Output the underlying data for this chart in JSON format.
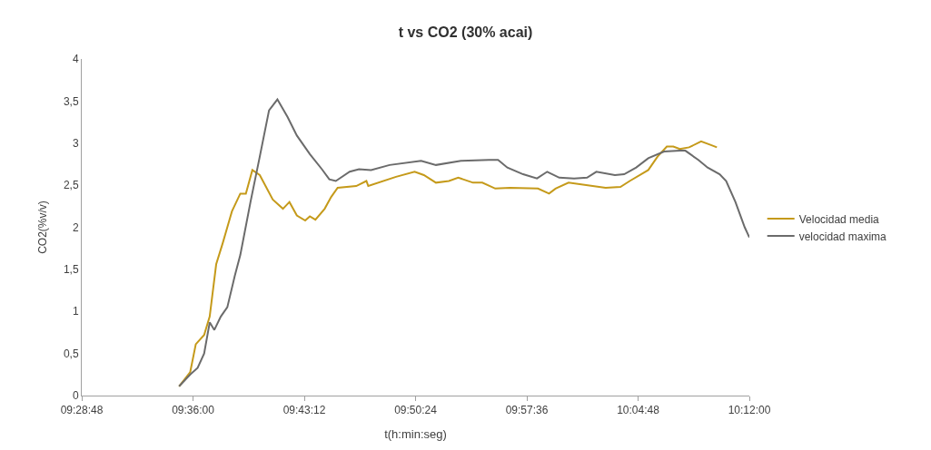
{
  "chart_data": {
    "type": "line",
    "title": "t vs CO2 (30% acai)",
    "xlabel": "t(h:min:seg)",
    "ylabel": "CO2(%v/v)",
    "xlim": [
      9.48,
      10.2
    ],
    "xticks": [
      {
        "value": 9.48,
        "label": "09:28:48"
      },
      {
        "value": 9.6,
        "label": "09:36:00"
      },
      {
        "value": 9.72,
        "label": "09:43:12"
      },
      {
        "value": 9.84,
        "label": "09:50:24"
      },
      {
        "value": 9.96,
        "label": "09:57:36"
      },
      {
        "value": 10.08,
        "label": "10:04:48"
      },
      {
        "value": 10.2,
        "label": "10:12:00"
      }
    ],
    "ylim": [
      0,
      4
    ],
    "yticks": [
      0,
      {
        "value": 0.5,
        "label": "0,5"
      },
      1,
      {
        "value": 1.5,
        "label": "1,5"
      },
      2,
      {
        "value": 2.5,
        "label": "2,5"
      },
      3,
      {
        "value": 3.5,
        "label": "3,5"
      },
      4
    ],
    "grid": false,
    "legend": "right",
    "marker": "none",
    "line_style": "solid",
    "series": [
      {
        "name": "Velocidad media",
        "color": "#c59a1a",
        "x": [
          9.585,
          9.597,
          9.603,
          9.612,
          9.618,
          9.625,
          9.632,
          9.642,
          9.651,
          9.657,
          9.664,
          9.672,
          9.686,
          9.697,
          9.704,
          9.712,
          9.721,
          9.726,
          9.732,
          9.742,
          9.749,
          9.756,
          9.776,
          9.787,
          9.789,
          9.819,
          9.839,
          9.849,
          9.862,
          9.876,
          9.886,
          9.902,
          9.912,
          9.926,
          9.942,
          9.972,
          9.984,
          9.991,
          10.005,
          10.031,
          10.045,
          10.061,
          10.071,
          10.091,
          10.101,
          10.111,
          10.118,
          10.125,
          10.135,
          10.148,
          10.158,
          10.165
        ],
        "values": [
          0.11,
          0.28,
          0.61,
          0.72,
          0.94,
          1.56,
          1.81,
          2.19,
          2.4,
          2.4,
          2.68,
          2.62,
          2.33,
          2.22,
          2.3,
          2.14,
          2.08,
          2.13,
          2.09,
          2.22,
          2.36,
          2.47,
          2.49,
          2.55,
          2.49,
          2.6,
          2.66,
          2.62,
          2.53,
          2.55,
          2.59,
          2.53,
          2.53,
          2.46,
          2.47,
          2.46,
          2.4,
          2.46,
          2.53,
          2.49,
          2.47,
          2.48,
          2.55,
          2.68,
          2.84,
          2.96,
          2.96,
          2.93,
          2.95,
          3.02,
          2.98,
          2.95
        ]
      },
      {
        "name": "velocidad maxima",
        "color": "#6b6b6b",
        "x": [
          9.585,
          9.597,
          9.605,
          9.612,
          9.618,
          9.623,
          9.63,
          9.637,
          9.645,
          9.651,
          9.662,
          9.672,
          9.682,
          9.691,
          9.702,
          9.712,
          9.726,
          9.739,
          9.747,
          9.754,
          9.769,
          9.779,
          9.792,
          9.812,
          9.846,
          9.862,
          9.889,
          9.919,
          9.929,
          9.939,
          9.956,
          9.971,
          9.982,
          9.995,
          10.011,
          10.025,
          10.035,
          10.055,
          10.065,
          10.078,
          10.091,
          10.108,
          10.125,
          10.131,
          10.145,
          10.155,
          10.168,
          10.175,
          10.185,
          10.195,
          10.2
        ],
        "values": [
          0.11,
          0.25,
          0.33,
          0.5,
          0.87,
          0.78,
          0.94,
          1.05,
          1.42,
          1.67,
          2.3,
          2.84,
          3.39,
          3.52,
          3.31,
          3.09,
          2.87,
          2.69,
          2.57,
          2.55,
          2.66,
          2.69,
          2.68,
          2.74,
          2.79,
          2.74,
          2.79,
          2.8,
          2.8,
          2.71,
          2.63,
          2.58,
          2.66,
          2.59,
          2.58,
          2.59,
          2.66,
          2.62,
          2.63,
          2.71,
          2.82,
          2.9,
          2.91,
          2.91,
          2.8,
          2.71,
          2.63,
          2.55,
          2.3,
          2.0,
          1.88
        ]
      }
    ]
  }
}
